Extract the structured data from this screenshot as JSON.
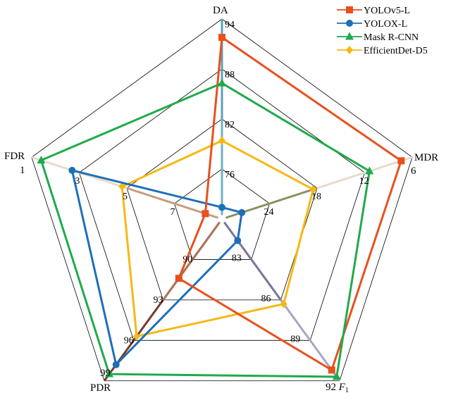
{
  "chart_data": {
    "type": "radar",
    "axes": [
      {
        "name": "DA",
        "sub": "",
        "ticks": [
          "76",
          "82",
          "88",
          "94"
        ],
        "min": 70,
        "max": 94
      },
      {
        "name": "MDR",
        "sub": "",
        "ticks": [
          "24",
          "18",
          "12",
          "6"
        ],
        "min": 30,
        "max": 6
      },
      {
        "name": "F",
        "sub": "1",
        "ticks": [
          "83",
          "86",
          "89",
          "92"
        ],
        "min": 80,
        "max": 92
      },
      {
        "name": "PDR",
        "sub": "",
        "ticks": [
          "90",
          "93",
          "96",
          "99"
        ],
        "min": 87,
        "max": 99
      },
      {
        "name": "FDR",
        "sub": "",
        "ticks": [
          "7",
          "5",
          "3",
          "1"
        ],
        "min": 9,
        "max": 1
      }
    ],
    "series": [
      {
        "name": "YOLOv5-L",
        "color": "#E8501E",
        "marker": "square",
        "values": [
          91.8,
          7.4,
          91.2,
          91.4,
          8.3
        ]
      },
      {
        "name": "YOLOX-L",
        "color": "#1E6FB9",
        "marker": "circle",
        "values": [
          71.4,
          27.5,
          81.6,
          97.8,
          2.7
        ]
      },
      {
        "name": "Mask R-CNN",
        "color": "#1FAA4B",
        "marker": "triangle",
        "values": [
          86.3,
          11.4,
          91.7,
          98.5,
          1.4
        ]
      },
      {
        "name": "EfficientDet-D5",
        "color": "#F5B915",
        "marker": "diamond",
        "values": [
          79.4,
          18.5,
          86.3,
          95.7,
          4.8
        ]
      }
    ],
    "legend": "top-right"
  }
}
